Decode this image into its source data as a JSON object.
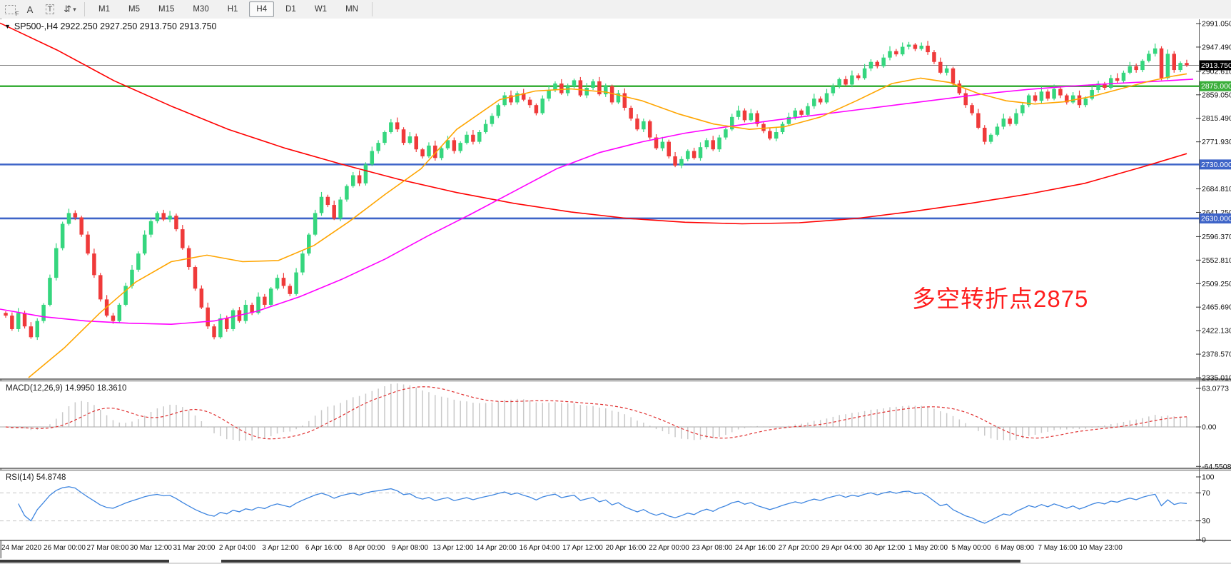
{
  "toolbar": {
    "tools": [
      {
        "name": "grid-template-f-icon",
        "glyph": "F"
      },
      {
        "name": "text-label-a-icon",
        "glyph": "A"
      },
      {
        "name": "text-tool-t-icon",
        "glyph": "T"
      },
      {
        "name": "arrows-tool-icon",
        "glyph": "⇵"
      }
    ],
    "dropdown_caret": "▾",
    "timeframes": [
      "M1",
      "M5",
      "M15",
      "M30",
      "H1",
      "H4",
      "D1",
      "W1",
      "MN"
    ],
    "active_timeframe": "H4"
  },
  "header": {
    "collapse_arrow": "▼",
    "title": "SP500-,H4  2922.250 2927.250 2913.750 2913.750"
  },
  "annotation": {
    "text": "多空转折点2875",
    "color": "#ff1e1e"
  },
  "chart_data": {
    "type": "candlestick",
    "symbol": "SP500-",
    "timeframe": "H4",
    "ohlc_display": {
      "open": "2922.250",
      "high": "2927.250",
      "low": "2913.750",
      "close": "2913.750"
    },
    "ylim": [
      2335.01,
      2991.05
    ],
    "grid": false,
    "up_color": "#35d67e",
    "down_color": "#ef3a3a",
    "closes": [
      2450,
      2425,
      2455,
      2430,
      2410,
      2440,
      2470,
      2520,
      2575,
      2620,
      2640,
      2632,
      2600,
      2565,
      2525,
      2480,
      2450,
      2440,
      2470,
      2505,
      2535,
      2565,
      2600,
      2625,
      2640,
      2628,
      2635,
      2610,
      2575,
      2540,
      2500,
      2465,
      2430,
      2410,
      2445,
      2425,
      2460,
      2440,
      2470,
      2455,
      2485,
      2470,
      2500,
      2520,
      2505,
      2490,
      2530,
      2565,
      2600,
      2640,
      2670,
      2655,
      2630,
      2665,
      2690,
      2710,
      2695,
      2730,
      2755,
      2770,
      2790,
      2808,
      2795,
      2770,
      2782,
      2758,
      2745,
      2765,
      2742,
      2760,
      2775,
      2755,
      2770,
      2785,
      2772,
      2790,
      2805,
      2820,
      2840,
      2858,
      2845,
      2862,
      2850,
      2840,
      2825,
      2852,
      2868,
      2880,
      2862,
      2875,
      2886,
      2858,
      2872,
      2884,
      2860,
      2875,
      2845,
      2862,
      2835,
      2815,
      2795,
      2810,
      2780,
      2760,
      2772,
      2745,
      2728,
      2740,
      2755,
      2742,
      2762,
      2775,
      2758,
      2780,
      2795,
      2818,
      2830,
      2812,
      2825,
      2805,
      2792,
      2778,
      2790,
      2805,
      2818,
      2830,
      2822,
      2838,
      2852,
      2845,
      2862,
      2875,
      2888,
      2878,
      2895,
      2890,
      2908,
      2920,
      2912,
      2928,
      2940,
      2934,
      2948,
      2952,
      2944,
      2950,
      2938,
      2920,
      2900,
      2908,
      2880,
      2862,
      2840,
      2825,
      2798,
      2772,
      2785,
      2800,
      2815,
      2805,
      2825,
      2840,
      2858,
      2848,
      2865,
      2852,
      2870,
      2858,
      2845,
      2858,
      2840,
      2852,
      2868,
      2880,
      2872,
      2890,
      2885,
      2900,
      2912,
      2905,
      2922,
      2935,
      2945,
      2890,
      2935,
      2905,
      2918,
      2913.75
    ],
    "y_axis_ticks": [
      {
        "text": "2991.050",
        "price": 2991.05,
        "badge": "none"
      },
      {
        "text": "2947.490",
        "price": 2947.49,
        "badge": "none"
      },
      {
        "text": "2913.750",
        "price": 2913.75,
        "badge": "black"
      },
      {
        "text": "2902.610",
        "price": 2902.61,
        "badge": "none"
      },
      {
        "text": "2875.000",
        "price": 2875.0,
        "badge": "green"
      },
      {
        "text": "2859.050",
        "price": 2859.05,
        "badge": "none"
      },
      {
        "text": "2815.490",
        "price": 2815.49,
        "badge": "none"
      },
      {
        "text": "2771.930",
        "price": 2771.93,
        "badge": "none"
      },
      {
        "text": "2730.000",
        "price": 2730.0,
        "badge": "blue"
      },
      {
        "text": "2684.810",
        "price": 2684.81,
        "badge": "none"
      },
      {
        "text": "2641.250",
        "price": 2641.25,
        "badge": "none"
      },
      {
        "text": "2630.000",
        "price": 2630.0,
        "badge": "blue"
      },
      {
        "text": "2596.370",
        "price": 2596.37,
        "badge": "none"
      },
      {
        "text": "2552.810",
        "price": 2552.81,
        "badge": "none"
      },
      {
        "text": "2509.250",
        "price": 2509.25,
        "badge": "none"
      },
      {
        "text": "2465.690",
        "price": 2465.69,
        "badge": "none"
      },
      {
        "text": "2422.130",
        "price": 2422.13,
        "badge": "none"
      },
      {
        "text": "2378.570",
        "price": 2378.57,
        "badge": "none"
      },
      {
        "text": "2335.010",
        "price": 2335.01,
        "badge": "none"
      }
    ],
    "x_axis_labels": [
      "24 Mar 2020",
      "26 Mar 00:00",
      "27 Mar 08:00",
      "30 Mar 12:00",
      "31 Mar 20:00",
      "2 Apr 04:00",
      "3 Apr 12:00",
      "6 Apr 16:00",
      "8 Apr 00:00",
      "9 Apr 08:00",
      "13 Apr 12:00",
      "14 Apr 20:00",
      "16 Apr 04:00",
      "17 Apr 12:00",
      "20 Apr 16:00",
      "22 Apr 00:00",
      "23 Apr 08:00",
      "24 Apr 16:00",
      "27 Apr 20:00",
      "29 Apr 04:00",
      "30 Apr 12:00",
      "1 May 20:00",
      "5 May 00:00",
      "6 May 08:00",
      "7 May 16:00",
      "10 May 23:00"
    ],
    "horizontal_lines": [
      {
        "price": 2913.75,
        "color": "#808080",
        "width": 1,
        "role": "current-price"
      },
      {
        "price": 2875.0,
        "color": "#3aae3a",
        "width": 2.4,
        "role": "support-resistance"
      },
      {
        "price": 2730.0,
        "color": "#3e64c8",
        "width": 2.6,
        "role": "support"
      },
      {
        "price": 2630.0,
        "color": "#3e64c8",
        "width": 2.6,
        "role": "support"
      }
    ],
    "badge_colors": {
      "black": "#000000",
      "green": "#3aae3a",
      "blue": "#3e64c8"
    },
    "moving_averages": [
      {
        "name": "red-long-ma",
        "color": "#ff0000",
        "points": [
          [
            0,
            2992
          ],
          [
            80,
            2942
          ],
          [
            160,
            2885
          ],
          [
            240,
            2838
          ],
          [
            320,
            2795
          ],
          [
            400,
            2760
          ],
          [
            480,
            2730
          ],
          [
            560,
            2702
          ],
          [
            640,
            2678
          ],
          [
            720,
            2658
          ],
          [
            800,
            2642
          ],
          [
            880,
            2630
          ],
          [
            960,
            2623
          ],
          [
            1040,
            2620
          ],
          [
            1120,
            2622
          ],
          [
            1200,
            2630
          ],
          [
            1280,
            2643
          ],
          [
            1360,
            2658
          ],
          [
            1440,
            2675
          ],
          [
            1520,
            2695
          ],
          [
            1600,
            2725
          ],
          [
            1663,
            2750
          ]
        ]
      },
      {
        "name": "magenta-mid-ma",
        "color": "#ff00ff",
        "points": [
          [
            0,
            2462
          ],
          [
            60,
            2448
          ],
          [
            120,
            2440
          ],
          [
            180,
            2436
          ],
          [
            240,
            2434
          ],
          [
            300,
            2440
          ],
          [
            360,
            2458
          ],
          [
            420,
            2485
          ],
          [
            480,
            2518
          ],
          [
            540,
            2555
          ],
          [
            600,
            2598
          ],
          [
            660,
            2638
          ],
          [
            720,
            2680
          ],
          [
            780,
            2722
          ],
          [
            840,
            2752
          ],
          [
            900,
            2772
          ],
          [
            960,
            2788
          ],
          [
            1020,
            2800
          ],
          [
            1080,
            2811
          ],
          [
            1140,
            2821
          ],
          [
            1200,
            2831
          ],
          [
            1260,
            2841
          ],
          [
            1320,
            2851
          ],
          [
            1380,
            2861
          ],
          [
            1440,
            2869
          ],
          [
            1500,
            2875
          ],
          [
            1560,
            2880
          ],
          [
            1620,
            2884
          ],
          [
            1672,
            2888
          ]
        ]
      },
      {
        "name": "orange-fast-ma",
        "color": "#ffa500",
        "points": [
          [
            40,
            2335
          ],
          [
            90,
            2390
          ],
          [
            140,
            2455
          ],
          [
            190,
            2512
          ],
          [
            240,
            2550
          ],
          [
            290,
            2562
          ],
          [
            340,
            2550
          ],
          [
            390,
            2552
          ],
          [
            440,
            2580
          ],
          [
            490,
            2625
          ],
          [
            540,
            2675
          ],
          [
            590,
            2722
          ],
          [
            640,
            2795
          ],
          [
            700,
            2850
          ],
          [
            750,
            2866
          ],
          [
            800,
            2870
          ],
          [
            850,
            2864
          ],
          [
            900,
            2848
          ],
          [
            950,
            2824
          ],
          [
            1000,
            2805
          ],
          [
            1050,
            2795
          ],
          [
            1100,
            2800
          ],
          [
            1150,
            2818
          ],
          [
            1200,
            2848
          ],
          [
            1250,
            2880
          ],
          [
            1290,
            2890
          ],
          [
            1330,
            2882
          ],
          [
            1370,
            2862
          ],
          [
            1410,
            2848
          ],
          [
            1450,
            2842
          ],
          [
            1490,
            2846
          ],
          [
            1530,
            2856
          ],
          [
            1570,
            2870
          ],
          [
            1610,
            2884
          ],
          [
            1645,
            2894
          ],
          [
            1663,
            2898
          ]
        ]
      }
    ],
    "indicators": {
      "macd": {
        "label": "MACD(12,26,9) 14.9950 18.3610",
        "params": [
          12,
          26,
          9
        ],
        "value_main": "14.9950",
        "value_signal": "18.3610",
        "axis_ticks": [
          {
            "text": "63.0773",
            "v": 63.0773
          },
          {
            "text": "0.00",
            "v": 0
          },
          {
            "text": "-64.5508",
            "v": -64.5508
          }
        ],
        "histogram_color": "#c9c9c9",
        "signal_color": "#e03030"
      },
      "rsi": {
        "label": "RSI(14) 54.8748",
        "period": 14,
        "value": "54.8748",
        "axis_ticks": [
          {
            "text": "100",
            "v": 100
          },
          {
            "text": "70",
            "v": 70
          },
          {
            "text": "30",
            "v": 30
          },
          {
            "text": "0",
            "v": 0
          }
        ],
        "levels": [
          70,
          30
        ],
        "line_color": "#3f86e0",
        "level_color": "#c4c4c4"
      }
    }
  }
}
